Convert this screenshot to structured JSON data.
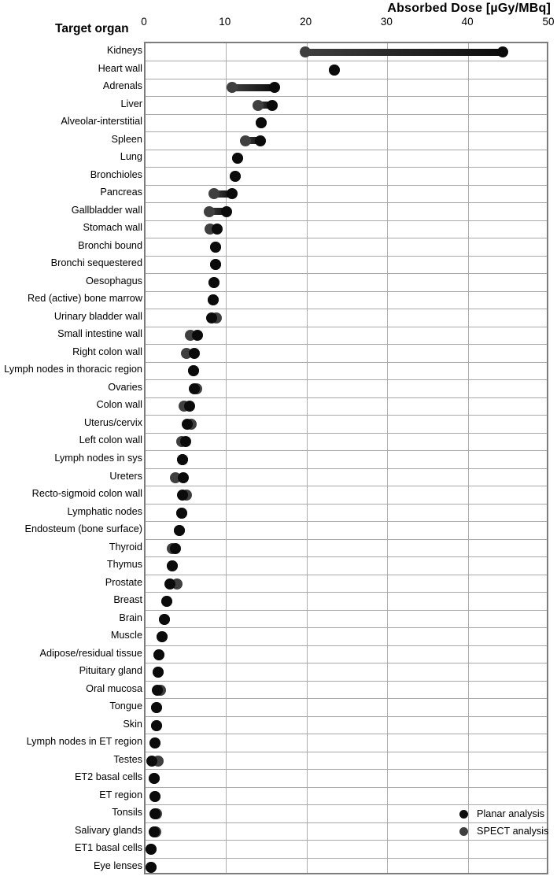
{
  "header": {
    "axis_title": "Absorbed Dose [µGy/MBq]",
    "y_axis_title": "Target organ"
  },
  "legend": {
    "items": [
      {
        "label": "Planar analysis",
        "color": "#0b0b0b"
      },
      {
        "label": "SPECT analysis",
        "color": "#3f3f3f"
      }
    ]
  },
  "chart_data": {
    "type": "scatter",
    "subtype": "dot-plot-dumbbell",
    "title": "Absorbed Dose [µGy/MBq]",
    "xlabel": "Absorbed Dose [µGy/MBq]",
    "ylabel": "Target organ",
    "xlim": [
      0,
      50
    ],
    "xticks": [
      0,
      10,
      20,
      30,
      40,
      50
    ],
    "grid": true,
    "legend_position": "inside bottom-right",
    "categories": [
      "Kidneys",
      "Heart wall",
      "Adrenals",
      "Liver",
      "Alveolar-interstitial",
      "Spleen",
      "Lung",
      "Bronchioles",
      "Pancreas",
      "Gallbladder wall",
      "Stomach wall",
      "Bronchi bound",
      "Bronchi sequestered",
      "Oesophagus",
      "Red (active) bone marrow",
      "Urinary bladder wall",
      "Small intestine wall",
      "Right colon wall",
      "Lymph nodes in thoracic region",
      "Ovaries",
      "Colon wall",
      "Uterus/cervix",
      "Left colon wall",
      "Lymph nodes in sys",
      "Ureters",
      "Recto-sigmoid colon wall",
      "Lymphatic nodes",
      "Endosteum (bone surface)",
      "Thyroid",
      "Thymus",
      "Prostate",
      "Breast",
      "Brain",
      "Muscle",
      "Adipose/residual tissue",
      "Pituitary gland",
      "Oral mucosa",
      "Tongue",
      "Skin",
      "Lymph nodes in ET region",
      "Testes",
      "ET2 basal cells",
      "ET region",
      "Tonsils",
      "Salivary glands",
      "ET1 basal cells",
      "Eye lenses"
    ],
    "series": [
      {
        "name": "Planar analysis",
        "color": "#0b0b0b",
        "values": [
          44.2,
          23.3,
          16.0,
          15.7,
          14.3,
          14.2,
          11.4,
          11.1,
          10.7,
          10.0,
          8.9,
          8.7,
          8.7,
          8.5,
          8.4,
          8.2,
          6.4,
          6.0,
          5.9,
          6.0,
          5.4,
          5.2,
          5.0,
          4.6,
          4.7,
          4.6,
          4.5,
          4.2,
          3.7,
          3.3,
          3.0,
          2.6,
          2.3,
          2.0,
          1.7,
          1.6,
          1.5,
          1.4,
          1.4,
          1.2,
          0.8,
          1.1,
          1.2,
          1.2,
          1.1,
          0.7,
          0.7
        ]
      },
      {
        "name": "SPECT analysis",
        "color": "#3f3f3f",
        "values": [
          19.7,
          23.3,
          10.7,
          13.9,
          14.3,
          12.4,
          11.4,
          11.1,
          8.5,
          7.9,
          8.0,
          8.7,
          8.7,
          8.5,
          8.4,
          8.8,
          5.5,
          5.1,
          5.9,
          6.3,
          4.8,
          5.6,
          4.5,
          4.6,
          3.7,
          5.1,
          4.5,
          4.2,
          3.3,
          3.3,
          3.9,
          2.6,
          2.3,
          2.0,
          1.7,
          1.6,
          1.8,
          1.4,
          1.4,
          1.2,
          1.6,
          1.1,
          1.2,
          1.4,
          1.3,
          0.7,
          0.7
        ]
      }
    ]
  }
}
